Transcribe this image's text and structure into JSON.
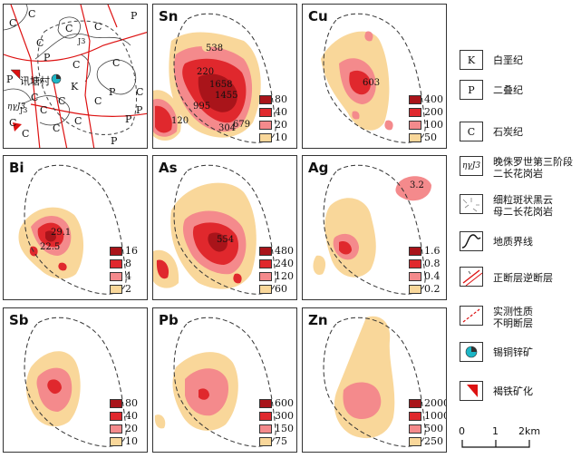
{
  "colors": {
    "c10": "#f9d79a",
    "c20": "#f48a8c",
    "c40": "#e0282d",
    "c80": "#a9141a",
    "boundary": "#333333"
  },
  "geology": {
    "labels": [
      "C",
      "C",
      "P",
      "C",
      "C",
      "C",
      "P",
      "J3",
      "P",
      "C",
      "C",
      "K",
      "P",
      "C",
      "C",
      "C",
      "C",
      "P",
      "C",
      "C",
      "C",
      "P",
      "J3",
      "C",
      "C",
      "P"
    ],
    "town": "讯塘村",
    "intrusion": "ηγJ3"
  },
  "panels": [
    {
      "element": "Sn",
      "legend": [
        "80",
        "40",
        "20",
        "10"
      ],
      "annotations": [
        "538",
        "220",
        "1658",
        "1455",
        "995",
        "120",
        "304",
        "679"
      ]
    },
    {
      "element": "Cu",
      "legend": [
        "400",
        "200",
        "100",
        "50"
      ],
      "annotations": [
        "603"
      ]
    },
    {
      "element": "Bi",
      "legend": [
        "16",
        "8",
        "4",
        "2"
      ],
      "annotations": [
        "29.1",
        "22.5"
      ]
    },
    {
      "element": "As",
      "legend": [
        "480",
        "240",
        "120",
        "60"
      ],
      "annotations": [
        "554"
      ]
    },
    {
      "element": "Ag",
      "legend": [
        "1.6",
        "0.8",
        "0.4",
        "0.2"
      ],
      "annotations": [
        "3.2"
      ]
    },
    {
      "element": "Sb",
      "legend": [
        "80",
        "40",
        "20",
        "10"
      ],
      "annotations": []
    },
    {
      "element": "Pb",
      "legend": [
        "600",
        "300",
        "150",
        "75"
      ],
      "annotations": []
    },
    {
      "element": "Zn",
      "legend": [
        "2000",
        "1000",
        "500",
        "250"
      ],
      "annotations": []
    }
  ],
  "legend": [
    {
      "symbol": "K",
      "text": "白垩纪"
    },
    {
      "symbol": "P",
      "text": "二叠纪"
    },
    {
      "symbol": "C",
      "text": "石炭纪"
    },
    {
      "symbol": "ηγJ3",
      "text": "晚侏罗世第三阶段\n二长花岗岩"
    },
    {
      "symbol": "granite-pattern",
      "text": "细粒斑状黑云\n母二长花岗岩"
    },
    {
      "symbol": "geologic-boundary",
      "text": "地质界线"
    },
    {
      "symbol": "fault",
      "text": "正断层逆断层"
    },
    {
      "symbol": "inferred-fault",
      "text": "实测性质\n不明断层"
    },
    {
      "symbol": "sn-cu-zn-deposit",
      "text": "锡铜锌矿"
    },
    {
      "symbol": "limonite",
      "text": "褐铁矿化"
    }
  ],
  "scale": {
    "ticks": [
      "0",
      "1",
      "2km"
    ]
  }
}
